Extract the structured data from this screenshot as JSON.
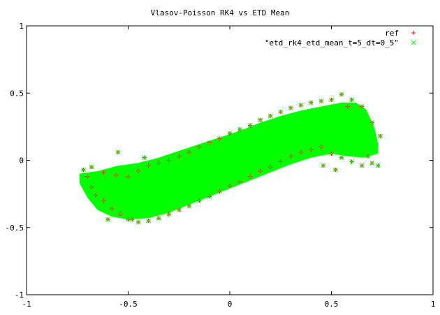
{
  "chart_data": {
    "type": "scatter",
    "title": "Vlasov-Poisson RK4 vs ETD Mean",
    "xlabel": "",
    "ylabel": "",
    "xlim": [
      -1,
      1
    ],
    "ylim": [
      -1,
      1
    ],
    "x_ticks": [
      "-1",
      "-0.5",
      "0",
      "0.5",
      "1"
    ],
    "y_ticks": [
      "-1",
      "-0.5",
      "0",
      "0.5",
      "1"
    ],
    "grid": false,
    "legend_position": "top-right",
    "series": [
      {
        "name": "ref",
        "marker": "+",
        "color": "#ff0000",
        "points": [
          [
            -0.72,
            -0.07
          ],
          [
            -0.7,
            -0.12
          ],
          [
            -0.68,
            -0.2
          ],
          [
            -0.66,
            -0.26
          ],
          [
            -0.62,
            -0.3
          ],
          [
            -0.58,
            -0.36
          ],
          [
            -0.54,
            -0.4
          ],
          [
            -0.5,
            -0.44
          ],
          [
            -0.45,
            -0.46
          ],
          [
            -0.4,
            -0.45
          ],
          [
            -0.35,
            -0.43
          ],
          [
            -0.3,
            -0.4
          ],
          [
            -0.25,
            -0.37
          ],
          [
            -0.2,
            -0.34
          ],
          [
            -0.15,
            -0.3
          ],
          [
            -0.1,
            -0.27
          ],
          [
            -0.05,
            -0.23
          ],
          [
            0.0,
            -0.19
          ],
          [
            0.05,
            -0.16
          ],
          [
            0.1,
            -0.12
          ],
          [
            0.15,
            -0.08
          ],
          [
            0.2,
            -0.05
          ],
          [
            0.25,
            -0.01
          ],
          [
            0.3,
            0.03
          ],
          [
            0.35,
            0.06
          ],
          [
            0.4,
            0.08
          ],
          [
            0.45,
            0.1
          ],
          [
            0.5,
            0.05
          ],
          [
            0.55,
            0.02
          ],
          [
            0.6,
            -0.01
          ],
          [
            0.65,
            -0.04
          ],
          [
            0.7,
            -0.02
          ],
          [
            0.73,
            -0.04
          ],
          [
            -0.68,
            -0.05
          ],
          [
            -0.62,
            -0.09
          ],
          [
            -0.56,
            -0.11
          ],
          [
            -0.5,
            -0.12
          ],
          [
            -0.45,
            -0.08
          ],
          [
            -0.4,
            -0.04
          ],
          [
            -0.35,
            -0.02
          ],
          [
            -0.3,
            0.0
          ],
          [
            -0.25,
            0.03
          ],
          [
            -0.2,
            0.06
          ],
          [
            -0.15,
            0.1
          ],
          [
            -0.1,
            0.13
          ],
          [
            -0.05,
            0.16
          ],
          [
            0.0,
            0.2
          ],
          [
            0.05,
            0.23
          ],
          [
            0.1,
            0.26
          ],
          [
            0.15,
            0.3
          ],
          [
            0.2,
            0.33
          ],
          [
            0.25,
            0.36
          ],
          [
            0.3,
            0.39
          ],
          [
            0.35,
            0.41
          ],
          [
            0.4,
            0.43
          ],
          [
            0.45,
            0.44
          ],
          [
            0.5,
            0.45
          ],
          [
            0.55,
            0.49
          ],
          [
            0.6,
            0.45
          ],
          [
            0.65,
            0.4
          ],
          [
            0.7,
            0.28
          ],
          [
            0.74,
            0.18
          ],
          [
            -0.55,
            0.06
          ],
          [
            0.52,
            -0.07
          ],
          [
            0.46,
            -0.04
          ],
          [
            -0.48,
            -0.44
          ],
          [
            -0.6,
            -0.44
          ],
          [
            0.68,
            0.03
          ],
          [
            0.58,
            0.4
          ],
          [
            -0.42,
            0.02
          ]
        ]
      },
      {
        "name": "\"etd_rk4_etd_mean_t=5_dt=0_5\"",
        "marker": "x",
        "color": "#00ff00",
        "points": [
          [
            -0.72,
            -0.07
          ],
          [
            -0.7,
            -0.12
          ],
          [
            -0.68,
            -0.2
          ],
          [
            -0.66,
            -0.26
          ],
          [
            -0.62,
            -0.3
          ],
          [
            -0.58,
            -0.36
          ],
          [
            -0.54,
            -0.4
          ],
          [
            -0.5,
            -0.44
          ],
          [
            -0.45,
            -0.46
          ],
          [
            -0.4,
            -0.45
          ],
          [
            -0.35,
            -0.43
          ],
          [
            -0.3,
            -0.4
          ],
          [
            -0.25,
            -0.37
          ],
          [
            -0.2,
            -0.34
          ],
          [
            -0.15,
            -0.3
          ],
          [
            -0.1,
            -0.27
          ],
          [
            -0.05,
            -0.23
          ],
          [
            0.0,
            -0.19
          ],
          [
            0.05,
            -0.16
          ],
          [
            0.1,
            -0.12
          ],
          [
            0.15,
            -0.08
          ],
          [
            0.2,
            -0.05
          ],
          [
            0.25,
            -0.01
          ],
          [
            0.3,
            0.03
          ],
          [
            0.35,
            0.06
          ],
          [
            0.4,
            0.08
          ],
          [
            0.45,
            0.1
          ],
          [
            0.5,
            0.05
          ],
          [
            0.55,
            0.02
          ],
          [
            0.6,
            -0.01
          ],
          [
            0.65,
            -0.04
          ],
          [
            0.7,
            -0.02
          ],
          [
            0.73,
            -0.04
          ],
          [
            -0.68,
            -0.05
          ],
          [
            -0.62,
            -0.09
          ],
          [
            -0.56,
            -0.11
          ],
          [
            -0.5,
            -0.12
          ],
          [
            -0.45,
            -0.08
          ],
          [
            -0.4,
            -0.04
          ],
          [
            -0.35,
            -0.02
          ],
          [
            -0.3,
            0.0
          ],
          [
            -0.25,
            0.03
          ],
          [
            -0.2,
            0.06
          ],
          [
            -0.15,
            0.1
          ],
          [
            -0.1,
            0.13
          ],
          [
            -0.05,
            0.16
          ],
          [
            0.0,
            0.2
          ],
          [
            0.05,
            0.23
          ],
          [
            0.1,
            0.26
          ],
          [
            0.15,
            0.3
          ],
          [
            0.2,
            0.33
          ],
          [
            0.25,
            0.36
          ],
          [
            0.3,
            0.39
          ],
          [
            0.35,
            0.41
          ],
          [
            0.4,
            0.43
          ],
          [
            0.45,
            0.44
          ],
          [
            0.5,
            0.45
          ],
          [
            0.55,
            0.49
          ],
          [
            0.6,
            0.45
          ],
          [
            0.65,
            0.4
          ],
          [
            0.7,
            0.28
          ],
          [
            0.74,
            0.18
          ],
          [
            -0.55,
            0.06
          ],
          [
            0.52,
            -0.07
          ],
          [
            0.46,
            -0.04
          ],
          [
            -0.48,
            -0.44
          ],
          [
            -0.6,
            -0.44
          ],
          [
            0.68,
            0.03
          ],
          [
            0.58,
            0.4
          ],
          [
            -0.42,
            0.02
          ]
        ],
        "dense_band": {
          "upper": [
            [
              -0.74,
              -0.1
            ],
            [
              -0.65,
              -0.08
            ],
            [
              -0.55,
              -0.04
            ],
            [
              -0.45,
              -0.02
            ],
            [
              -0.35,
              0.02
            ],
            [
              -0.25,
              0.07
            ],
            [
              -0.15,
              0.12
            ],
            [
              -0.05,
              0.17
            ],
            [
              0.05,
              0.22
            ],
            [
              0.15,
              0.28
            ],
            [
              0.25,
              0.33
            ],
            [
              0.35,
              0.37
            ],
            [
              0.45,
              0.4
            ],
            [
              0.55,
              0.43
            ],
            [
              0.62,
              0.43
            ],
            [
              0.67,
              0.38
            ],
            [
              0.71,
              0.25
            ],
            [
              0.73,
              0.12
            ]
          ],
          "lower": [
            [
              -0.74,
              -0.17
            ],
            [
              -0.7,
              -0.28
            ],
            [
              -0.65,
              -0.37
            ],
            [
              -0.58,
              -0.42
            ],
            [
              -0.5,
              -0.44
            ],
            [
              -0.4,
              -0.43
            ],
            [
              -0.3,
              -0.39
            ],
            [
              -0.2,
              -0.33
            ],
            [
              -0.1,
              -0.27
            ],
            [
              0.0,
              -0.21
            ],
            [
              0.1,
              -0.15
            ],
            [
              0.2,
              -0.09
            ],
            [
              0.3,
              -0.03
            ],
            [
              0.4,
              0.02
            ],
            [
              0.5,
              0.05
            ],
            [
              0.58,
              0.03
            ],
            [
              0.66,
              0.02
            ],
            [
              0.73,
              0.05
            ]
          ]
        }
      }
    ]
  }
}
